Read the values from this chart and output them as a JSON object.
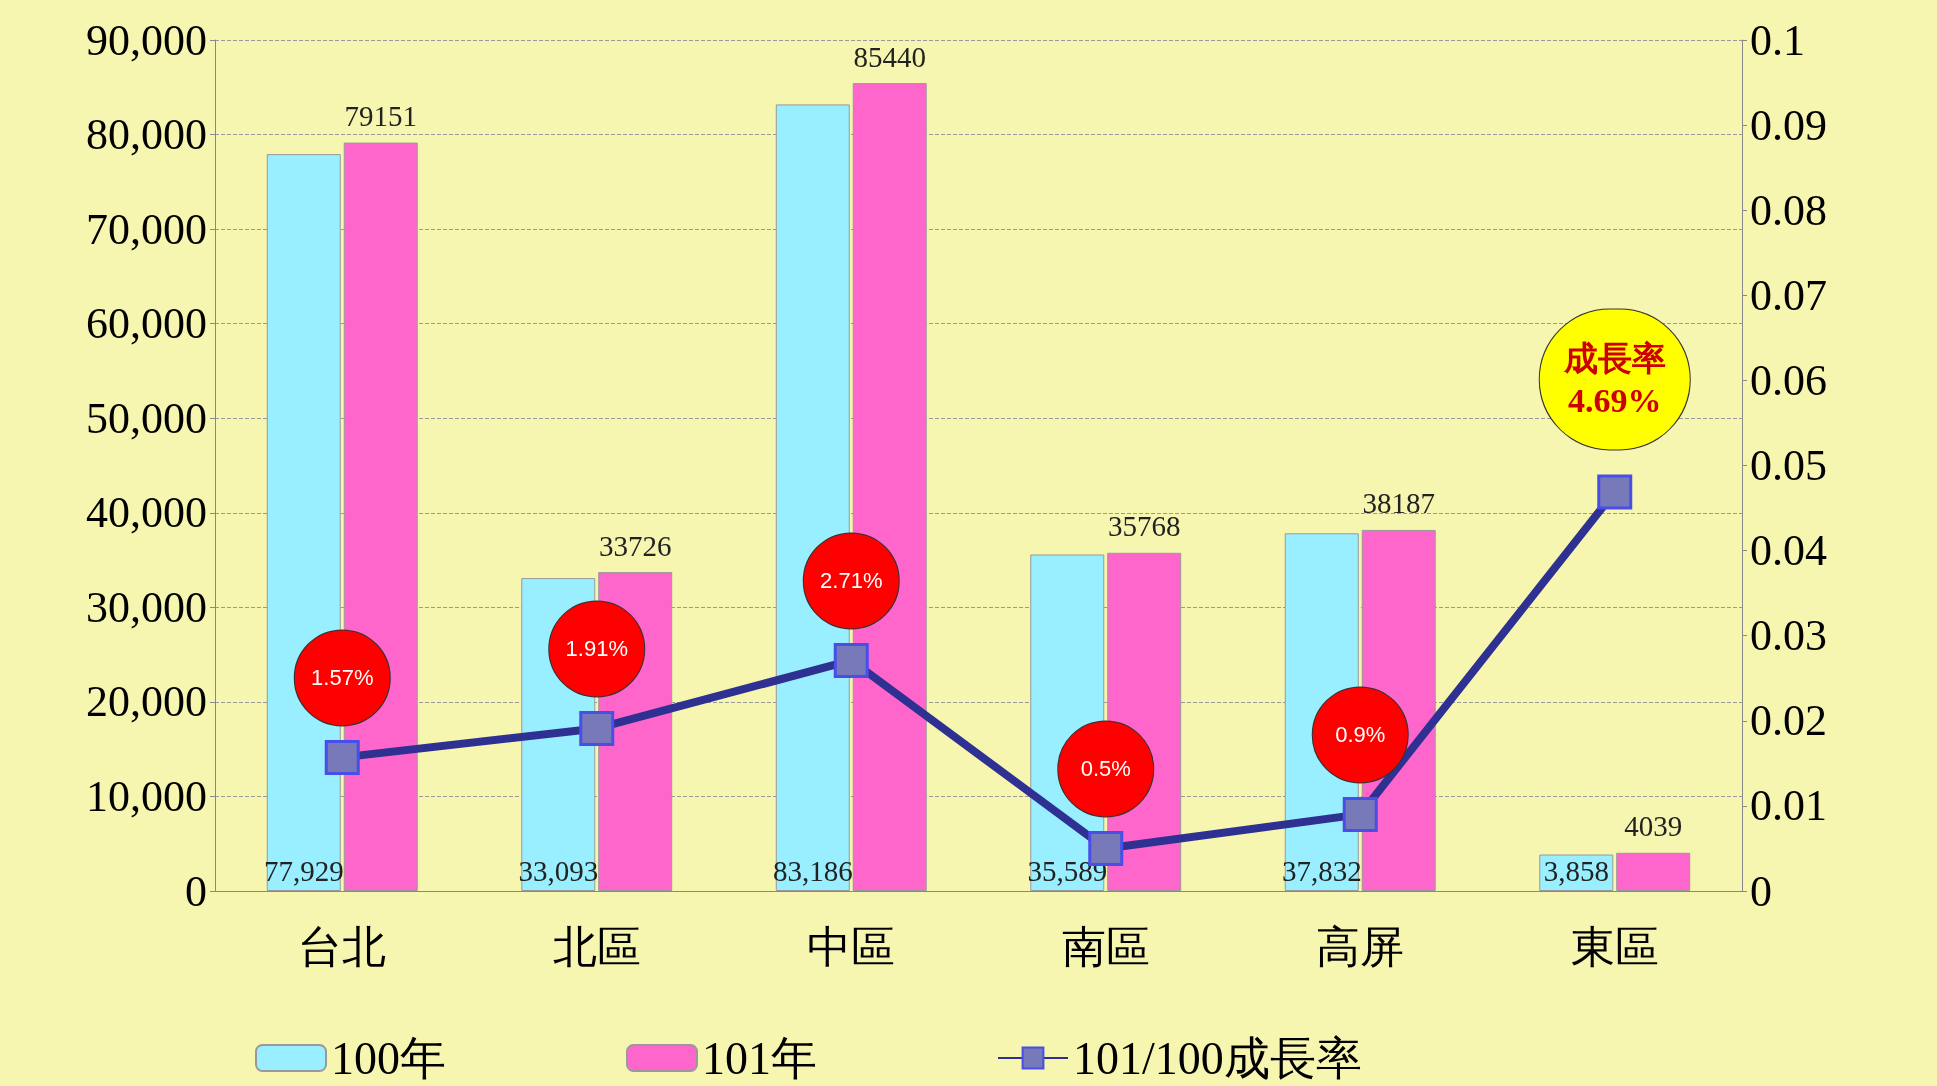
{
  "chart_data": {
    "type": "bar",
    "categories": [
      "台北",
      "北區",
      "中區",
      "南區",
      "高屏",
      "東區"
    ],
    "series": [
      {
        "name": "100年",
        "color": "#99eeff",
        "values": [
          77929,
          33093,
          83186,
          35589,
          37832,
          3858
        ],
        "value_labels": [
          "77,929",
          "33,093",
          "83,186",
          "35,589",
          "37,832",
          "3,858"
        ]
      },
      {
        "name": "101年",
        "color": "#ff66cc",
        "values": [
          79151,
          33726,
          85440,
          35768,
          38187,
          4039
        ],
        "value_labels": [
          "79151",
          "33726",
          "85440",
          "35768",
          "38187",
          "4039"
        ]
      },
      {
        "name": "101/100成長率",
        "type": "line",
        "axis": "y2",
        "color": "#2e3192",
        "values": [
          0.0157,
          0.0191,
          0.0271,
          0.005,
          0.009,
          0.0469
        ],
        "value_labels": [
          "1.57%",
          "1.91%",
          "2.71%",
          "0.5%",
          "0.9%",
          "成長率\n4.69%"
        ]
      }
    ],
    "ylim": [
      0,
      90000
    ],
    "yticks": [
      {
        "value": 0,
        "label": "0"
      },
      {
        "value": 10000,
        "label": "10,000"
      },
      {
        "value": 20000,
        "label": "20,000"
      },
      {
        "value": 30000,
        "label": "30,000"
      },
      {
        "value": 40000,
        "label": "40,000"
      },
      {
        "value": 50000,
        "label": "50,000"
      },
      {
        "value": 60000,
        "label": "60,000"
      },
      {
        "value": 70000,
        "label": "70,000"
      },
      {
        "value": 80000,
        "label": "80,000"
      },
      {
        "value": 90000,
        "label": "90,000"
      }
    ],
    "y2lim": [
      0,
      0.1
    ],
    "y2ticks": [
      0,
      0.01,
      0.02,
      0.03,
      0.04,
      0.05,
      0.06,
      0.07,
      0.08,
      0.09,
      0.1
    ],
    "grid": "y",
    "legend": "bottom",
    "marker": "square",
    "line_style": "solid"
  }
}
